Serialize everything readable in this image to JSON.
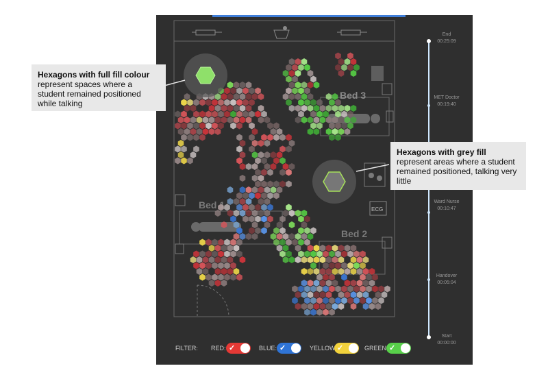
{
  "room": {
    "bed_labels": {
      "bed3": "Bed 3",
      "bed1": "Bed 1",
      "bed2": "Bed 2"
    },
    "ecg_label": "ECG"
  },
  "timeline": {
    "markers": [
      {
        "name": "End",
        "time": "00:25:09"
      },
      {
        "name": "MET Doctor",
        "time": "00:19:40"
      },
      {
        "name": "Ward Nurse",
        "time": "00:10:47"
      },
      {
        "name": "Handover",
        "time": "00:05:04"
      },
      {
        "name": "Start",
        "time": "00:00:00"
      }
    ]
  },
  "callouts": {
    "full_fill": {
      "title": "Hexagons with full fill colour",
      "body": "represent spaces where a student remained positioned while talking"
    },
    "grey_fill": {
      "title": "Hexagons with grey fill",
      "body": "represent areas where a student remained positioned, talking very little"
    }
  },
  "filter": {
    "label": "FILTER:",
    "items": [
      {
        "label": "RED:",
        "color": "#e53935",
        "enabled": true
      },
      {
        "label": "BLUE:",
        "color": "#2f74d6",
        "enabled": true
      },
      {
        "label": "YELLOW:",
        "color": "#f2d23c",
        "enabled": true
      },
      {
        "label": "GREEN:",
        "color": "#58d04a",
        "enabled": true
      }
    ]
  },
  "legend_colors": {
    "background": "#2f2f2f",
    "timeline": "#cfe8ff",
    "highlight": "#8fe06a"
  }
}
